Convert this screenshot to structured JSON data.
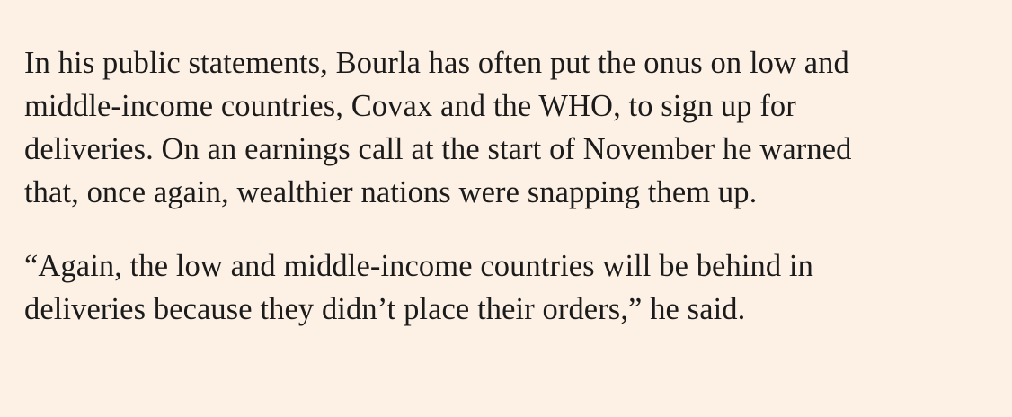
{
  "article": {
    "paragraphs": [
      {
        "lines": [
          "In his public statements, Bourla has often put the onus on low and",
          "middle-income countries, Covax and the WHO, to sign up for",
          "deliveries. On an earnings call at the start of November he warned",
          "that, once again, wealthier nations were snapping them up."
        ]
      },
      {
        "lines": [
          "“Again, the low and middle-income countries will be behind in",
          "deliveries because they didn’t place their orders,” he said."
        ]
      }
    ]
  }
}
